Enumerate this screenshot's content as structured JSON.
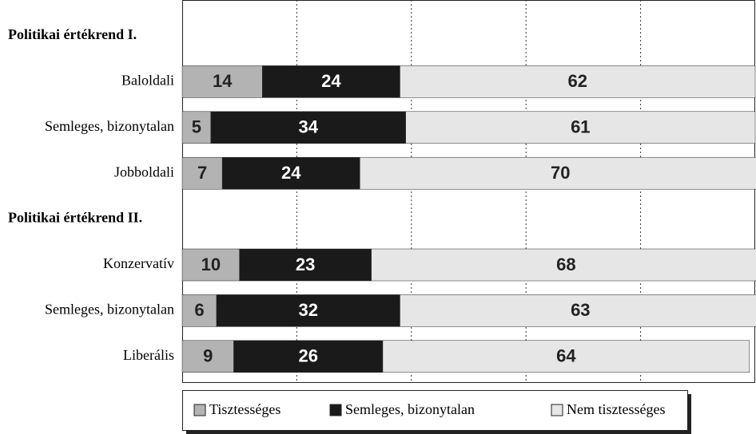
{
  "chart_data": {
    "type": "stacked-bar-horizontal",
    "groups": [
      {
        "title": "Politikai értékrend I.",
        "categories": [
          "Baloldali",
          "Semleges, bizonytalan",
          "Jobboldali"
        ]
      },
      {
        "title": "Politikai értékrend II.",
        "categories": [
          "Konzervatív",
          "Semleges, bizonytalan",
          "Liberális"
        ]
      }
    ],
    "series": [
      {
        "name": "Tisztességes",
        "color": "#b3b3b3",
        "values": [
          14,
          5,
          7,
          10,
          6,
          9
        ]
      },
      {
        "name": "Semleges, bizonytalan",
        "color": "#1a1a1a",
        "values": [
          24,
          34,
          24,
          23,
          32,
          26
        ]
      },
      {
        "name": "Nem tisztességes",
        "color": "#e6e6e6",
        "values": [
          62,
          61,
          70,
          68,
          63,
          64
        ]
      }
    ],
    "xlim": [
      0,
      100
    ],
    "xticks": [
      0,
      20,
      40,
      60,
      80,
      100
    ],
    "grid": true,
    "legend": "bottom"
  }
}
